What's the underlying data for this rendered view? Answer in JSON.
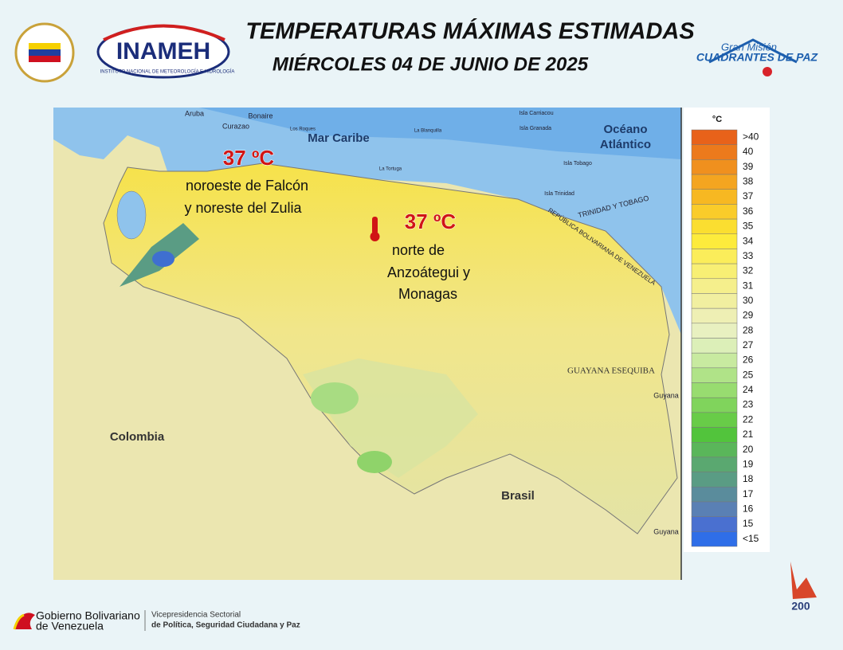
{
  "header": {
    "title": "TEMPERATURAS MÁXIMAS ESTIMADAS",
    "date": "MIÉRCOLES 04 DE JUNIO DE 2025",
    "logo_left": "INAMEH",
    "logo_left_caption": "INSTITUTO NACIONAL DE METEOROLOGÍA E HIDROLOGÍA",
    "logo_right_top": "Gran Misión",
    "logo_right": "CUADRANTES DE PAZ"
  },
  "map": {
    "labels": [
      "Mar Caribe",
      "Océano",
      "Atlántico",
      "Colombia",
      "Brasil",
      "GUAYANA ESEQUIBA",
      "Guyana",
      "Guyana",
      "TRINIDAD Y TOBAGO",
      "REPÚBLICA BOLIVARIANA DE VENEZUELA",
      "Aruba",
      "Curazao",
      "Bonaire",
      "Los Roques",
      "La Tortuga",
      "La Blanquilla",
      "Isla Carriacou",
      "Isla Granada",
      "Isla Tobago",
      "Isla Trinidad"
    ]
  },
  "annotations": [
    {
      "value": "37 ºC",
      "lines": [
        "noroeste de Falcón",
        "y noreste del Zulia"
      ]
    },
    {
      "value": "37 ºC",
      "lines": [
        "norte de",
        "Anzoátegui  y",
        "Monagas"
      ]
    }
  ],
  "legend": {
    "unit": "°C",
    "items": [
      {
        "label": ">40",
        "color": "#e8621a"
      },
      {
        "label": "40",
        "color": "#ec7a1c"
      },
      {
        "label": "39",
        "color": "#f0901e"
      },
      {
        "label": "38",
        "color": "#f4a520"
      },
      {
        "label": "37",
        "color": "#f7b822"
      },
      {
        "label": "36",
        "color": "#facc2a"
      },
      {
        "label": "35",
        "color": "#fbde30"
      },
      {
        "label": "34",
        "color": "#fdeb3c"
      },
      {
        "label": "33",
        "color": "#fbed5a"
      },
      {
        "label": "32",
        "color": "#f8ef74"
      },
      {
        "label": "31",
        "color": "#f5ef8c"
      },
      {
        "label": "30",
        "color": "#f1efa0"
      },
      {
        "label": "29",
        "color": "#eeefb4"
      },
      {
        "label": "28",
        "color": "#e8f0c0"
      },
      {
        "label": "27",
        "color": "#dcefb8"
      },
      {
        "label": "26",
        "color": "#c8eaa0"
      },
      {
        "label": "25",
        "color": "#b0e388"
      },
      {
        "label": "24",
        "color": "#98dc70"
      },
      {
        "label": "23",
        "color": "#80d45c"
      },
      {
        "label": "22",
        "color": "#68cc48"
      },
      {
        "label": "21",
        "color": "#52c43c"
      },
      {
        "label": "20",
        "color": "#5ab65a"
      },
      {
        "label": "19",
        "color": "#5aa870"
      },
      {
        "label": "18",
        "color": "#5a9c84"
      },
      {
        "label": "17",
        "color": "#5a8c9c"
      },
      {
        "label": "16",
        "color": "#5a80b4"
      },
      {
        "label": "15",
        "color": "#4a70d0"
      },
      {
        "label": "<15",
        "color": "#2f6ee8"
      }
    ]
  },
  "footer": {
    "gov_line1": "Gobierno Bolivariano",
    "gov_line2": "de Venezuela",
    "vp_line1": "Vicepresidencia Sectorial",
    "vp_line2": "de Política, Seguridad Ciudadana y Paz",
    "badge": "200"
  }
}
